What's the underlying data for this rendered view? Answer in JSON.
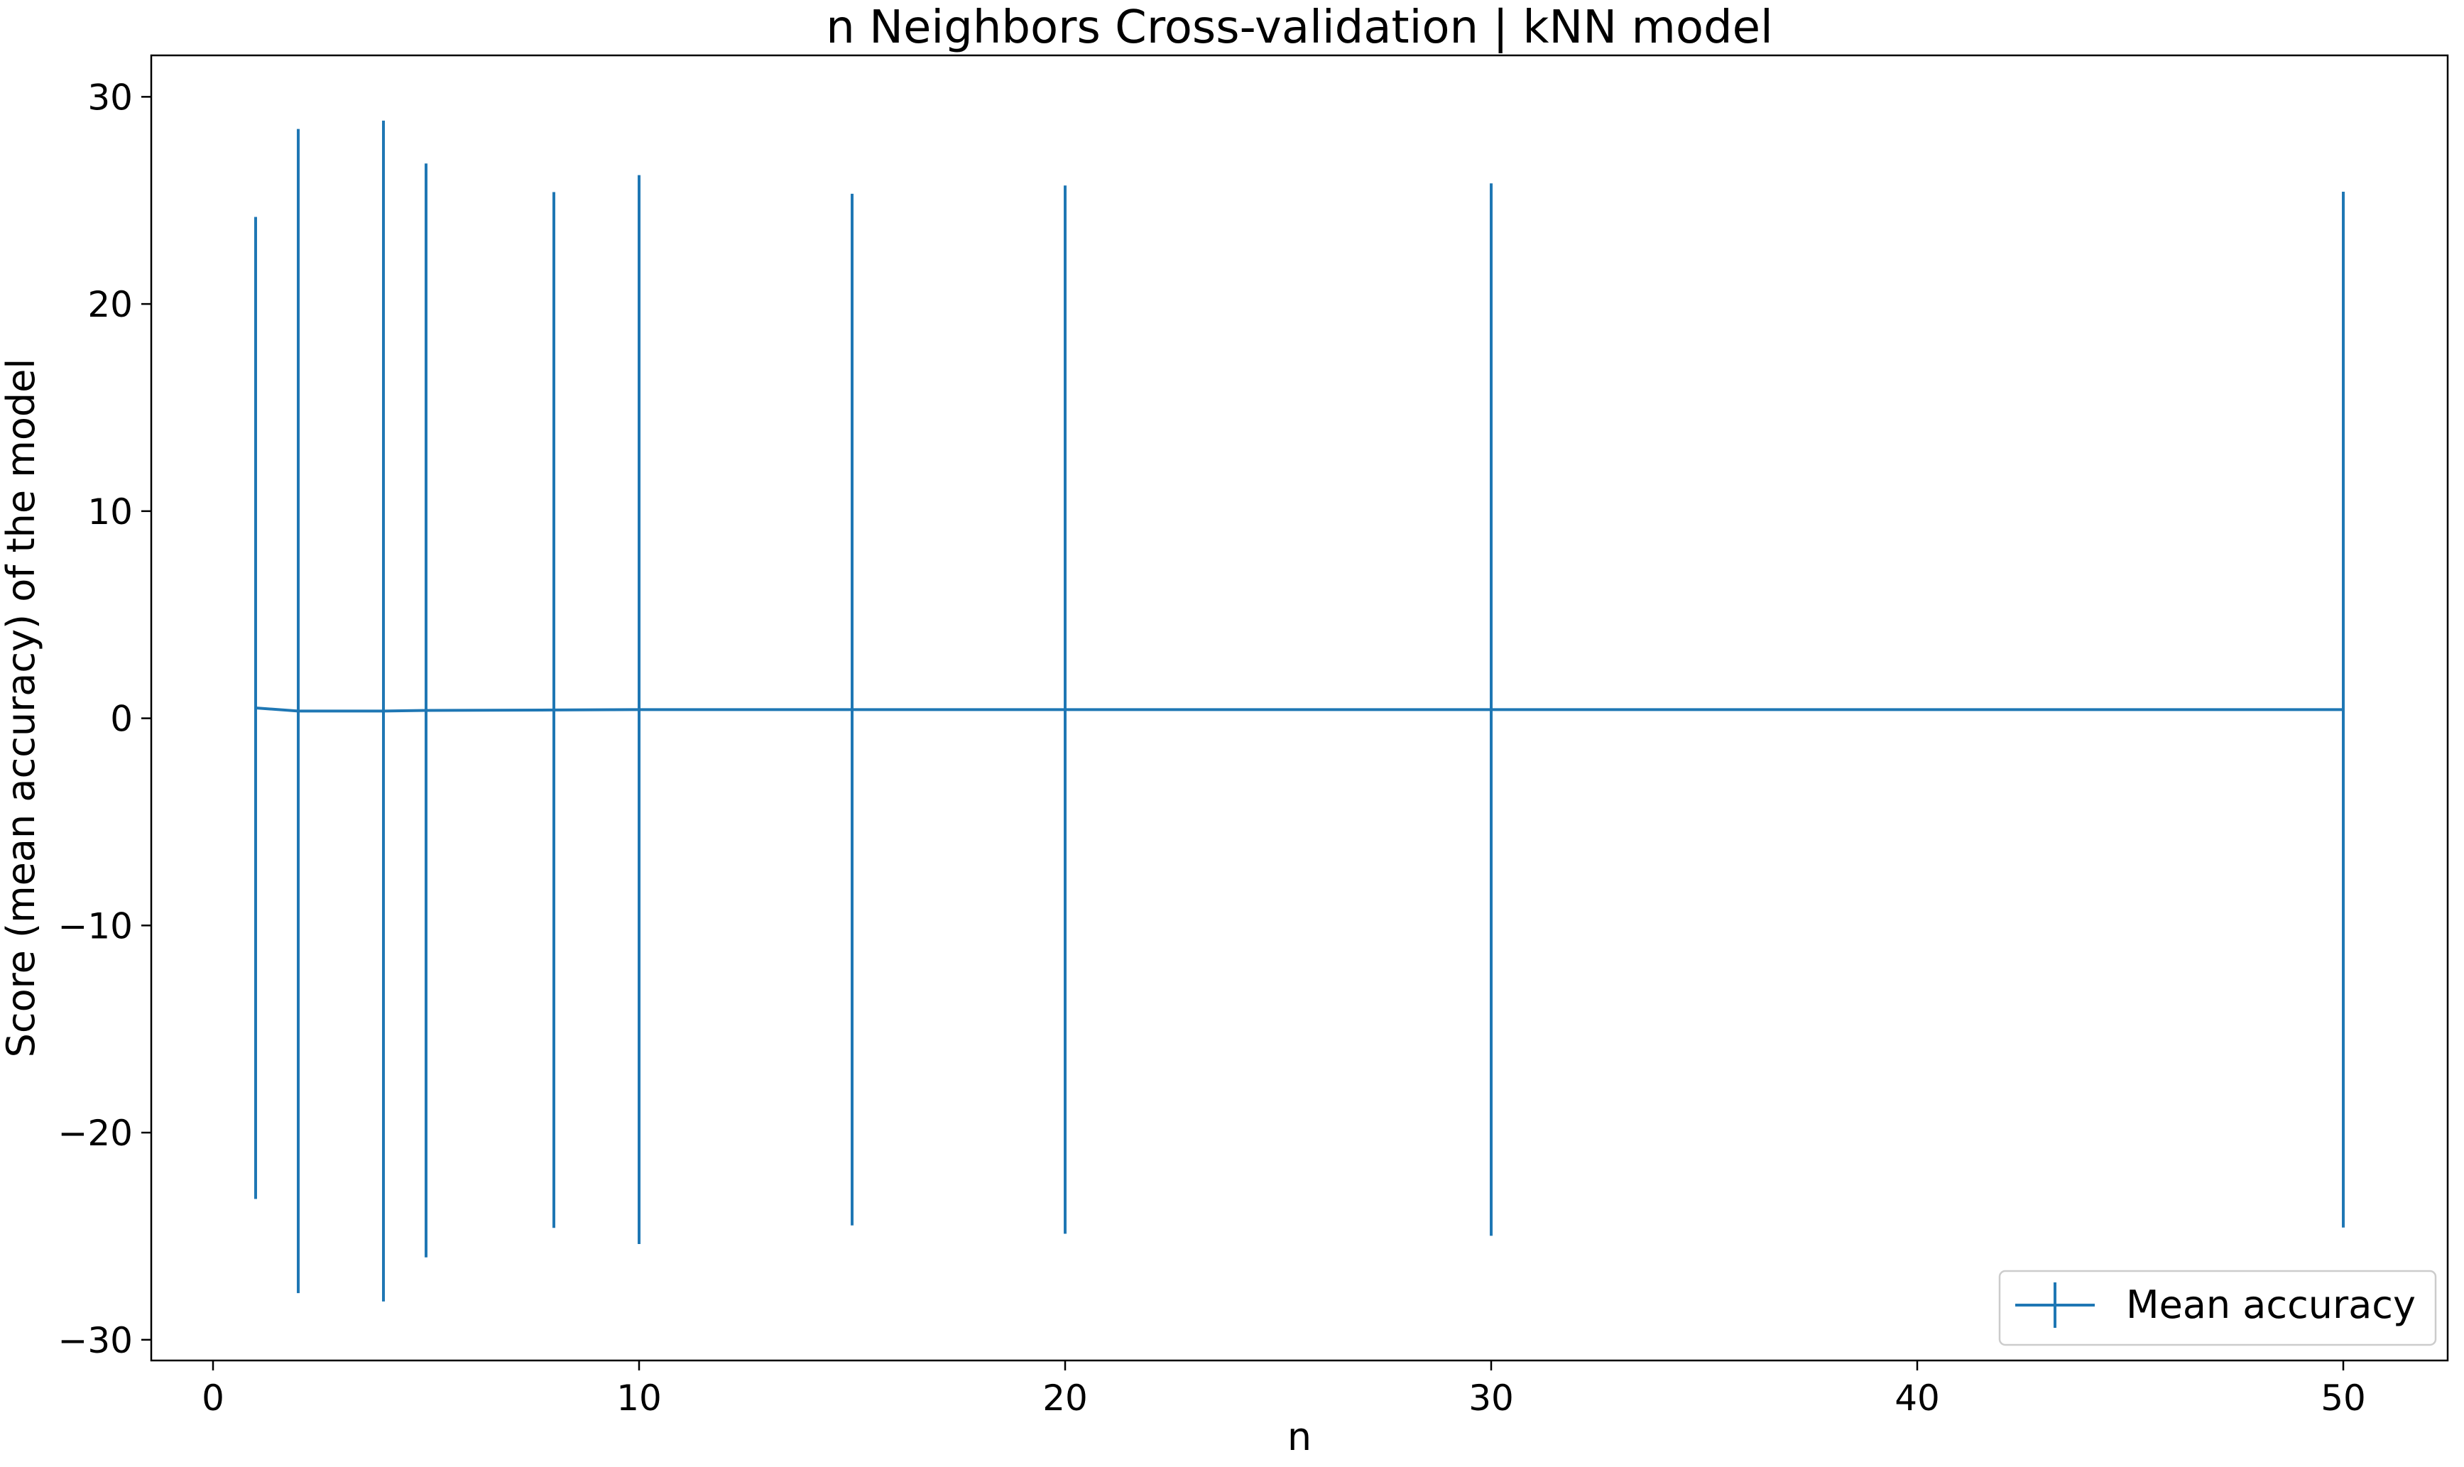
{
  "chart_data": {
    "type": "line",
    "title": "n Neighbors Cross-validation | kNN model",
    "xlabel": "n",
    "ylabel": "Score (mean accuracy) of the model",
    "xlim": [
      -1.45,
      52.45
    ],
    "ylim": [
      -31.0,
      32.0
    ],
    "xticks": [
      0,
      10,
      20,
      30,
      40,
      50
    ],
    "xtick_labels": [
      "0",
      "10",
      "20",
      "30",
      "40",
      "50"
    ],
    "yticks": [
      -30,
      -20,
      -10,
      0,
      10,
      20,
      30
    ],
    "ytick_labels": [
      "−30",
      "−20",
      "−10",
      "0",
      "10",
      "20",
      "30"
    ],
    "grid": false,
    "legend_position": "lower right",
    "series": [
      {
        "name": "Mean accuracy",
        "color": "#1f77b4",
        "x": [
          1,
          2,
          4,
          5,
          8,
          10,
          15,
          20,
          30,
          50
        ],
        "y": [
          0.5,
          0.35,
          0.35,
          0.38,
          0.4,
          0.42,
          0.42,
          0.42,
          0.42,
          0.42
        ],
        "yerr": [
          23.7,
          28.1,
          28.5,
          26.4,
          25.0,
          25.8,
          24.9,
          25.3,
          25.4,
          25.0
        ]
      }
    ]
  }
}
